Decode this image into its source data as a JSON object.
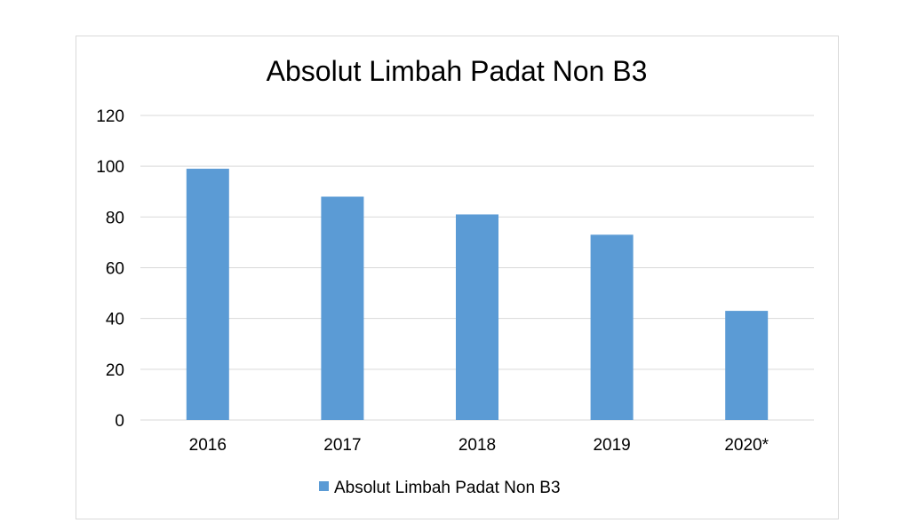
{
  "chart_data": {
    "type": "bar",
    "title": "Absolut Limbah Padat Non B3",
    "categories": [
      "2016",
      "2017",
      "2018",
      "2019",
      "2020*"
    ],
    "series": [
      {
        "name": "Absolut Limbah Padat Non B3",
        "values": [
          99,
          88,
          81,
          73,
          43
        ],
        "color": "#5b9bd5"
      }
    ],
    "yticks": [
      "0",
      "20",
      "40",
      "60",
      "80",
      "100",
      "120"
    ],
    "ylim": [
      0,
      120
    ],
    "grid": true,
    "legend": "bottom"
  }
}
